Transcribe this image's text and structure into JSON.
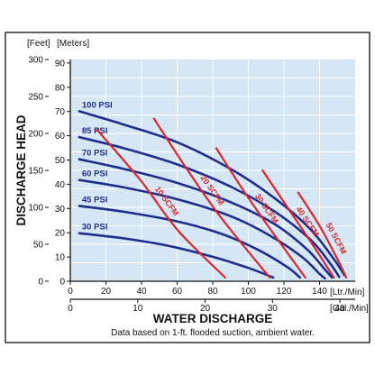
{
  "chart_data": {
    "type": "line",
    "ylabel": "DISCHARGE HEAD",
    "xlabel": "WATER DISCHARGE",
    "note": "Data based on 1-ft. flooded suction, ambient water.",
    "y_units": {
      "primary": "[Feet]",
      "secondary": "[Meters]"
    },
    "x_units": {
      "primary": "[Ltr./Min]",
      "secondary": "[Gal./Min]"
    },
    "ylim_feet": [
      0,
      300
    ],
    "y_ticks_feet": [
      0,
      50,
      100,
      150,
      200,
      250,
      300
    ],
    "y_ticks_meters": [
      0,
      10,
      20,
      30,
      40,
      50,
      60,
      70,
      80,
      90
    ],
    "xlim_lpm": [
      0,
      160
    ],
    "x_ticks_lpm": [
      0,
      20,
      40,
      60,
      80,
      100,
      120,
      140
    ],
    "x_ticks_gpm": [
      0,
      10,
      20,
      30,
      40
    ],
    "pressure_curves": [
      {
        "name": "100 PSI",
        "points": [
          [
            5,
            230
          ],
          [
            30,
            212
          ],
          [
            60,
            188
          ],
          [
            90,
            152
          ],
          [
            115,
            112
          ],
          [
            135,
            70
          ],
          [
            148,
            30
          ],
          [
            154,
            8
          ]
        ]
      },
      {
        "name": "85 PSI",
        "points": [
          [
            5,
            195
          ],
          [
            30,
            180
          ],
          [
            60,
            158
          ],
          [
            90,
            128
          ],
          [
            115,
            94
          ],
          [
            135,
            56
          ],
          [
            146,
            24
          ],
          [
            151,
            6
          ]
        ]
      },
      {
        "name": "70 PSI",
        "points": [
          [
            5,
            165
          ],
          [
            30,
            152
          ],
          [
            60,
            133
          ],
          [
            90,
            107
          ],
          [
            115,
            77
          ],
          [
            133,
            43
          ],
          [
            143,
            16
          ],
          [
            147,
            5
          ]
        ]
      },
      {
        "name": "60 PSI",
        "points": [
          [
            5,
            137
          ],
          [
            30,
            127
          ],
          [
            60,
            111
          ],
          [
            90,
            88
          ],
          [
            112,
            62
          ],
          [
            130,
            33
          ],
          [
            140,
            10
          ],
          [
            143,
            4
          ]
        ]
      },
      {
        "name": "45 PSI",
        "points": [
          [
            5,
            102
          ],
          [
            30,
            94
          ],
          [
            60,
            81
          ],
          [
            85,
            64
          ],
          [
            105,
            43
          ],
          [
            122,
            19
          ],
          [
            129,
            5
          ]
        ]
      },
      {
        "name": "30 PSI",
        "points": [
          [
            5,
            65
          ],
          [
            30,
            58
          ],
          [
            55,
            48
          ],
          [
            80,
            33
          ],
          [
            100,
            18
          ],
          [
            114,
            5
          ]
        ]
      }
    ],
    "air_consumption_curves": [
      {
        "name": "10 SCFM",
        "points": [
          [
            15,
            205
          ],
          [
            40,
            135
          ],
          [
            60,
            70
          ],
          [
            87,
            5
          ]
        ]
      },
      {
        "name": "20 SCFM",
        "points": [
          [
            47,
            220
          ],
          [
            66,
            150
          ],
          [
            85,
            85
          ],
          [
            112,
            5
          ]
        ]
      },
      {
        "name": "30 SCFM",
        "points": [
          [
            82,
            180
          ],
          [
            98,
            120
          ],
          [
            114,
            65
          ],
          [
            132,
            5
          ]
        ]
      },
      {
        "name": "40 SCFM",
        "points": [
          [
            108,
            150
          ],
          [
            122,
            100
          ],
          [
            136,
            50
          ],
          [
            148,
            5
          ]
        ]
      },
      {
        "name": "50 SCFM",
        "points": [
          [
            128,
            120
          ],
          [
            140,
            75
          ],
          [
            150,
            30
          ],
          [
            155,
            5
          ]
        ]
      }
    ]
  }
}
